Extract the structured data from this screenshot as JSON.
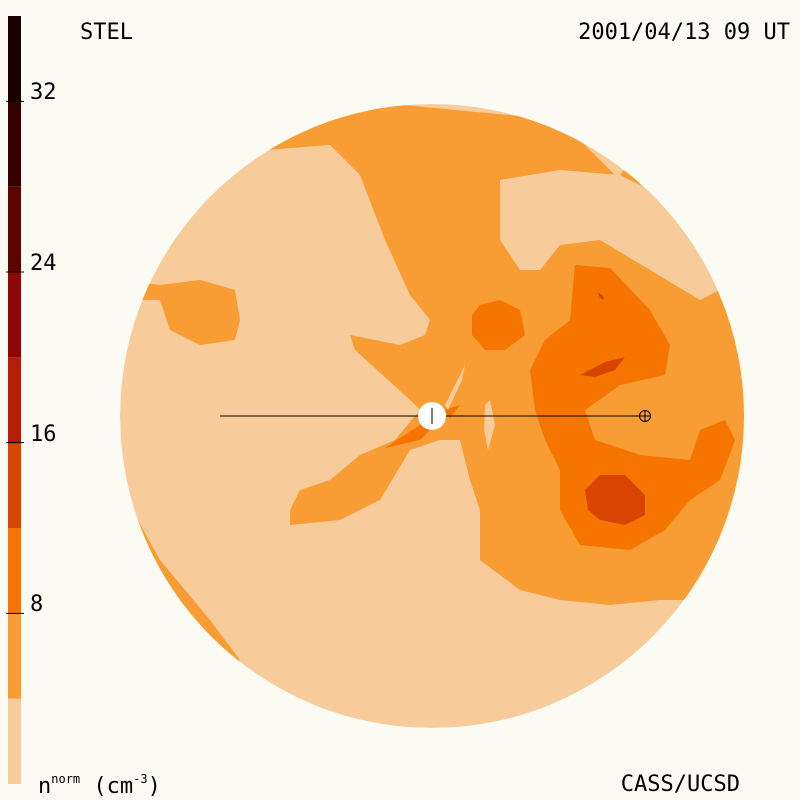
{
  "header": {
    "station": "STEL",
    "datetime": "2001/04/13 09 UT"
  },
  "footer": {
    "credit": "CASS/UCSD",
    "units_base": "n",
    "units_sup": "norm",
    "units_open": " (cm",
    "units_exp": "-3",
    "units_close": ")"
  },
  "chart_data": {
    "type": "heatmap",
    "title": "",
    "colorbar": {
      "ticks": [
        "8",
        "16",
        "24",
        "32"
      ],
      "tick_values": [
        8,
        16,
        24,
        32
      ],
      "range": [
        0,
        36
      ],
      "levels": [
        {
          "from": 0,
          "to": 4,
          "color": "#f8cc9a"
        },
        {
          "from": 4,
          "to": 8,
          "color": "#f89c34"
        },
        {
          "from": 8,
          "to": 12,
          "color": "#f57500"
        },
        {
          "from": 12,
          "to": 16,
          "color": "#d94500"
        },
        {
          "from": 16,
          "to": 20,
          "color": "#b81c08"
        },
        {
          "from": 20,
          "to": 24,
          "color": "#8e0606"
        },
        {
          "from": 24,
          "to": 28,
          "color": "#5e0202"
        },
        {
          "from": 28,
          "to": 32,
          "color": "#360000"
        },
        {
          "from": 32,
          "to": 36,
          "color": "#1c0000"
        }
      ]
    },
    "markers": [
      "sun",
      "earth"
    ]
  }
}
